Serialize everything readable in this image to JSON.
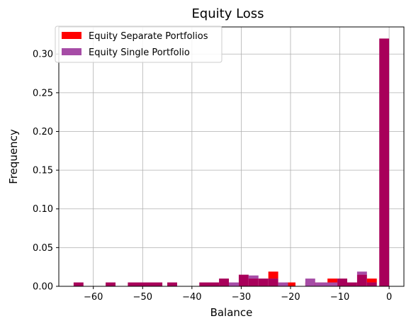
{
  "chart_data": {
    "type": "bar",
    "title": "Equity Loss",
    "xlabel": "Balance",
    "ylabel": "Frequency",
    "xlim": [
      -67,
      3
    ],
    "ylim": [
      0,
      0.335
    ],
    "grid": true,
    "legend_position": "top-left",
    "x_ticks": [
      -60,
      -50,
      -40,
      -30,
      -20,
      -10,
      0
    ],
    "x_tick_labels": [
      "−60",
      "−50",
      "−40",
      "−30",
      "−20",
      "−10",
      "0"
    ],
    "y_ticks": [
      0.0,
      0.05,
      0.1,
      0.15,
      0.2,
      0.25,
      0.3
    ],
    "y_tick_labels": [
      "0.00",
      "0.05",
      "0.10",
      "0.15",
      "0.20",
      "0.25",
      "0.30"
    ],
    "overlap_color": "#a8005a",
    "series": [
      {
        "name": "Equity Separate Portfolios",
        "color": "#ff0000",
        "opacity": 1.0,
        "bins": [
          {
            "x0": -64,
            "x1": -62,
            "value": 0.005
          },
          {
            "x0": -57.5,
            "x1": -55.5,
            "value": 0.005
          },
          {
            "x0": -53,
            "x1": -46,
            "value": 0.005
          },
          {
            "x0": -45,
            "x1": -43,
            "value": 0.005
          },
          {
            "x0": -38.5,
            "x1": -34.5,
            "value": 0.005
          },
          {
            "x0": -34.5,
            "x1": -32.5,
            "value": 0.01
          },
          {
            "x0": -32.5,
            "x1": -30.5,
            "value": 0.0
          },
          {
            "x0": -30.5,
            "x1": -28.5,
            "value": 0.015
          },
          {
            "x0": -28.5,
            "x1": -26.5,
            "value": 0.01
          },
          {
            "x0": -26.5,
            "x1": -24.5,
            "value": 0.01
          },
          {
            "x0": -24.5,
            "x1": -22.5,
            "value": 0.019
          },
          {
            "x0": -21,
            "x1": -19,
            "value": 0.005
          },
          {
            "x0": -17,
            "x1": -12.5,
            "value": 0.005
          },
          {
            "x0": -12.5,
            "x1": -10.5,
            "value": 0.01
          },
          {
            "x0": -10.5,
            "x1": -8.5,
            "value": 0.01
          },
          {
            "x0": -8.5,
            "x1": -6.5,
            "value": 0.005
          },
          {
            "x0": -6.5,
            "x1": -4.5,
            "value": 0.015
          },
          {
            "x0": -4.5,
            "x1": -2.5,
            "value": 0.01
          },
          {
            "x0": -2,
            "x1": 0,
            "value": 0.32
          }
        ]
      },
      {
        "name": "Equity Single Portfolio",
        "color": "#a64ca6",
        "opacity": 1.0,
        "bins": [
          {
            "x0": -64,
            "x1": -62,
            "value": 0.005
          },
          {
            "x0": -57.5,
            "x1": -55.5,
            "value": 0.005
          },
          {
            "x0": -53,
            "x1": -46,
            "value": 0.005
          },
          {
            "x0": -45,
            "x1": -43,
            "value": 0.005
          },
          {
            "x0": -38.5,
            "x1": -34.5,
            "value": 0.005
          },
          {
            "x0": -34.5,
            "x1": -32.5,
            "value": 0.01
          },
          {
            "x0": -32.5,
            "x1": -30.5,
            "value": 0.005
          },
          {
            "x0": -30.5,
            "x1": -28.5,
            "value": 0.015
          },
          {
            "x0": -28.5,
            "x1": -26.5,
            "value": 0.014
          },
          {
            "x0": -26.5,
            "x1": -24.5,
            "value": 0.01
          },
          {
            "x0": -24.5,
            "x1": -22.5,
            "value": 0.01
          },
          {
            "x0": -22.5,
            "x1": -20.5,
            "value": 0.005
          },
          {
            "x0": -17,
            "x1": -15,
            "value": 0.01
          },
          {
            "x0": -15,
            "x1": -10.5,
            "value": 0.005
          },
          {
            "x0": -10.5,
            "x1": -8.5,
            "value": 0.01
          },
          {
            "x0": -8.5,
            "x1": -6.5,
            "value": 0.005
          },
          {
            "x0": -6.5,
            "x1": -4.5,
            "value": 0.019
          },
          {
            "x0": -4.5,
            "x1": -2.5,
            "value": 0.005
          },
          {
            "x0": -2,
            "x1": 0,
            "value": 0.32
          }
        ]
      }
    ]
  }
}
